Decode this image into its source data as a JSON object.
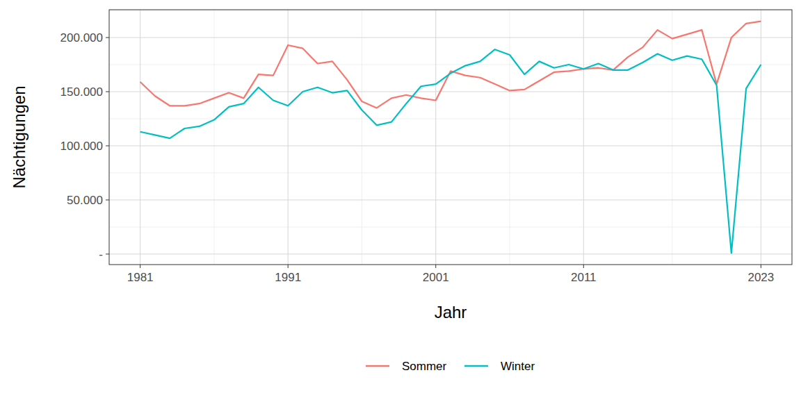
{
  "chart_data": {
    "type": "line",
    "x_label": "Jahr",
    "y_label": "Nächtigungen",
    "x": [
      1981,
      1982,
      1983,
      1984,
      1985,
      1986,
      1987,
      1988,
      1989,
      1990,
      1991,
      1992,
      1993,
      1994,
      1995,
      1996,
      1997,
      1998,
      1999,
      2000,
      2001,
      2002,
      2003,
      2004,
      2005,
      2006,
      2007,
      2008,
      2009,
      2010,
      2011,
      2012,
      2013,
      2014,
      2015,
      2016,
      2017,
      2018,
      2019,
      2020,
      2021,
      2022,
      2023
    ],
    "series": [
      {
        "name": "Sommer",
        "color": "#F8766D",
        "values": [
          159000,
          146000,
          137000,
          137000,
          139000,
          144000,
          149000,
          144000,
          166000,
          165000,
          193000,
          190000,
          176000,
          178000,
          161000,
          141000,
          135000,
          144000,
          147000,
          144000,
          142000,
          169000,
          165000,
          163000,
          157000,
          151000,
          152000,
          160000,
          168000,
          169000,
          171000,
          172000,
          170000,
          182000,
          191000,
          207000,
          199000,
          203000,
          207000,
          157000,
          200000,
          213000,
          215000
        ]
      },
      {
        "name": "Winter",
        "color": "#00BFC4",
        "values": [
          113000,
          110000,
          107000,
          116000,
          118000,
          124000,
          136000,
          139000,
          154000,
          142000,
          137000,
          150000,
          154000,
          149000,
          151000,
          133000,
          119000,
          122000,
          139000,
          155000,
          157000,
          167000,
          174000,
          178000,
          189000,
          184000,
          166000,
          178000,
          172000,
          175000,
          171000,
          176000,
          170000,
          170000,
          177000,
          185000,
          179000,
          183000,
          180000,
          156000,
          1000,
          153000,
          175000
        ]
      }
    ],
    "xlim": [
      1978.9,
      2025.1
    ],
    "xticks": [
      1981,
      1991,
      2001,
      2011,
      2023
    ],
    "ylim": [
      -9700,
      225700
    ],
    "yticks": [
      {
        "value": 0,
        "label": "-"
      },
      {
        "value": 50000,
        "label": "50.000"
      },
      {
        "value": 100000,
        "label": "100.000"
      },
      {
        "value": 150000,
        "label": "150.000"
      },
      {
        "value": 200000,
        "label": "200.000"
      }
    ],
    "grid": true,
    "legend": "bottom"
  }
}
